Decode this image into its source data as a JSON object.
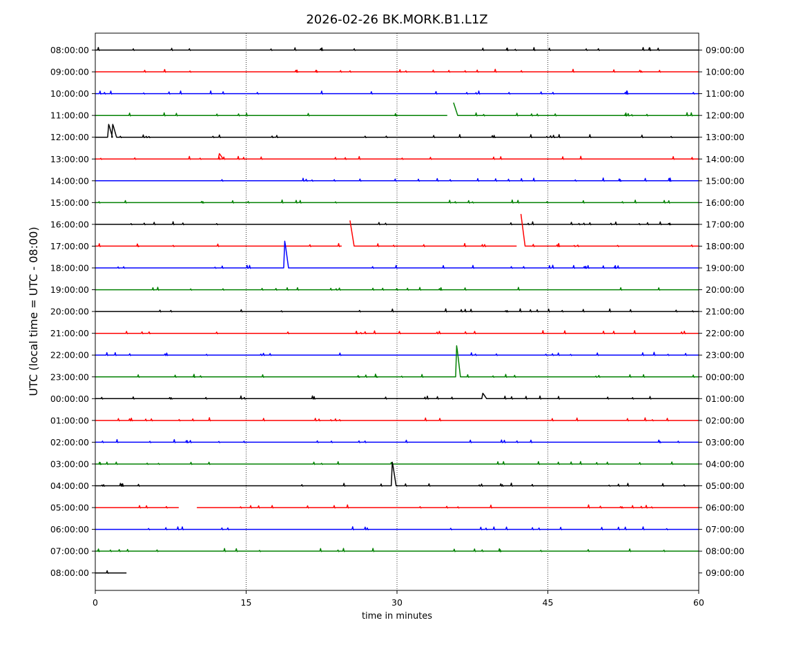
{
  "chart_data": {
    "type": "line",
    "title": "2026-02-26 BK.MORK.B1.L1Z",
    "xlabel": "time in minutes",
    "ylabel": "UTC (local time = UTC - 08:00)",
    "xlim": [
      0,
      60
    ],
    "x_ticks": [
      0,
      15,
      30,
      45,
      60
    ],
    "grid": "vertical dotted lines at 15, 30, 45",
    "color_cycle": [
      "#000000",
      "#ff0000",
      "#0000ff",
      "#008000"
    ],
    "rows": [
      {
        "left_label": "08:00:00",
        "right_label": "09:00:00",
        "color": "#000000",
        "end_minute": 60,
        "gaps": [],
        "spikes": []
      },
      {
        "left_label": "09:00:00",
        "right_label": "10:00:00",
        "color": "#ff0000",
        "end_minute": 60,
        "gaps": [],
        "spikes": []
      },
      {
        "left_label": "10:00:00",
        "right_label": "11:00:00",
        "color": "#0000ff",
        "end_minute": 60,
        "gaps": [],
        "spikes": []
      },
      {
        "left_label": "11:00:00",
        "right_label": "12:00:00",
        "color": "#008000",
        "end_minute": 60,
        "gaps": [
          [
            35.0,
            35.9
          ]
        ],
        "spikes": [
          [
            35.9,
            0.6
          ]
        ]
      },
      {
        "left_label": "12:00:00",
        "right_label": "13:00:00",
        "color": "#000000",
        "end_minute": 60,
        "gaps": [],
        "spikes": [
          [
            1.3,
            0.6
          ],
          [
            1.7,
            0.6
          ]
        ]
      },
      {
        "left_label": "13:00:00",
        "right_label": "14:00:00",
        "color": "#ff0000",
        "end_minute": 60,
        "gaps": [],
        "spikes": [
          [
            12.3,
            0.25
          ]
        ]
      },
      {
        "left_label": "14:00:00",
        "right_label": "15:00:00",
        "color": "#0000ff",
        "end_minute": 60,
        "gaps": [],
        "spikes": []
      },
      {
        "left_label": "15:00:00",
        "right_label": "16:00:00",
        "color": "#008000",
        "end_minute": 60,
        "gaps": [],
        "spikes": []
      },
      {
        "left_label": "16:00:00",
        "right_label": "17:00:00",
        "color": "#000000",
        "end_minute": 60,
        "gaps": [],
        "spikes": []
      },
      {
        "left_label": "17:00:00",
        "right_label": "18:00:00",
        "color": "#ff0000",
        "end_minute": 60,
        "gaps": [
          [
            24.5,
            25.6
          ],
          [
            41.9,
            42.6
          ]
        ],
        "spikes": [
          [
            25.6,
            1.2
          ],
          [
            42.6,
            1.5
          ]
        ]
      },
      {
        "left_label": "18:00:00",
        "right_label": "19:00:00",
        "color": "#0000ff",
        "end_minute": 60,
        "gaps": [],
        "spikes": [
          [
            18.8,
            1.25
          ]
        ]
      },
      {
        "left_label": "19:00:00",
        "right_label": "20:00:00",
        "color": "#008000",
        "end_minute": 60,
        "gaps": [],
        "spikes": []
      },
      {
        "left_label": "20:00:00",
        "right_label": "21:00:00",
        "color": "#000000",
        "end_minute": 60,
        "gaps": [],
        "spikes": []
      },
      {
        "left_label": "21:00:00",
        "right_label": "22:00:00",
        "color": "#ff0000",
        "end_minute": 60,
        "gaps": [],
        "spikes": []
      },
      {
        "left_label": "22:00:00",
        "right_label": "23:00:00",
        "color": "#0000ff",
        "end_minute": 60,
        "gaps": [],
        "spikes": []
      },
      {
        "left_label": "23:00:00",
        "right_label": "00:00:00",
        "color": "#008000",
        "end_minute": 60,
        "gaps": [],
        "spikes": [
          [
            35.9,
            1.45
          ]
        ]
      },
      {
        "left_label": "00:00:00",
        "right_label": "01:00:00",
        "color": "#000000",
        "end_minute": 60,
        "gaps": [],
        "spikes": [
          [
            38.5,
            0.25
          ]
        ]
      },
      {
        "left_label": "01:00:00",
        "right_label": "02:00:00",
        "color": "#ff0000",
        "end_minute": 60,
        "gaps": [],
        "spikes": []
      },
      {
        "left_label": "02:00:00",
        "right_label": "03:00:00",
        "color": "#0000ff",
        "end_minute": 60,
        "gaps": [],
        "spikes": []
      },
      {
        "left_label": "03:00:00",
        "right_label": "04:00:00",
        "color": "#008000",
        "end_minute": 60,
        "gaps": [],
        "spikes": []
      },
      {
        "left_label": "04:00:00",
        "right_label": "05:00:00",
        "color": "#000000",
        "end_minute": 60,
        "gaps": [],
        "spikes": [
          [
            29.5,
            1.1
          ]
        ]
      },
      {
        "left_label": "05:00:00",
        "right_label": "06:00:00",
        "color": "#ff0000",
        "end_minute": 60,
        "gaps": [
          [
            8.3,
            10.1
          ]
        ],
        "spikes": []
      },
      {
        "left_label": "06:00:00",
        "right_label": "07:00:00",
        "color": "#0000ff",
        "end_minute": 60,
        "gaps": [],
        "spikes": []
      },
      {
        "left_label": "07:00:00",
        "right_label": "08:00:00",
        "color": "#008000",
        "end_minute": 60,
        "gaps": [],
        "spikes": []
      },
      {
        "left_label": "08:00:00",
        "right_label": "09:00:00",
        "color": "#000000",
        "end_minute": 3.1,
        "gaps": [],
        "spikes": []
      }
    ]
  }
}
